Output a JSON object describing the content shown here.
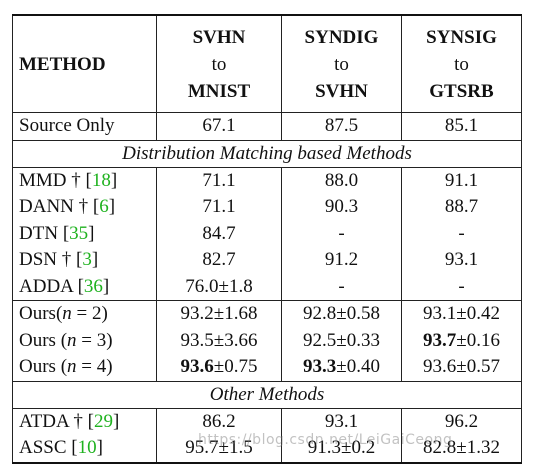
{
  "header": {
    "method": "METHOD",
    "col1": {
      "src": "SVHN",
      "to": "to",
      "dst": "MNIST"
    },
    "col2": {
      "src": "SYNDIG",
      "to": "to",
      "dst": "SVHN"
    },
    "col3": {
      "src": "SYNSIG",
      "to": "to",
      "dst": "GTSRB"
    }
  },
  "source_only": {
    "name": "Source Only",
    "v1": "67.1",
    "v2": "87.5",
    "v3": "85.1"
  },
  "section_distribution": "Distribution Matching based Methods",
  "section_other": "Other Methods",
  "rows": {
    "mmd": {
      "name": "MMD †",
      "ref": "18",
      "v1": "71.1",
      "v2": "88.0",
      "v3": "91.1"
    },
    "dann": {
      "name": "DANN †",
      "ref": "6",
      "v1": "71.1",
      "v2": "90.3",
      "v3": "88.7"
    },
    "dtn": {
      "name": "DTN",
      "ref": "35",
      "v1": "84.7",
      "v2": "-",
      "v3": "-"
    },
    "dsn": {
      "name": "DSN †",
      "ref": "3",
      "v1": "82.7",
      "v2": "91.2",
      "v3": "93.1"
    },
    "adda": {
      "name": "ADDA",
      "ref": "36",
      "v1": "76.0±1.8",
      "v2": "-",
      "v3": "-"
    }
  },
  "ours": {
    "n2": {
      "prefix": "Ours(",
      "var": "n",
      "eq": " = 2)",
      "v1": "93.2±1.68",
      "v2": "92.8±0.58",
      "v3": "93.1±0.42"
    },
    "n3": {
      "prefix": "Ours (",
      "var": "n",
      "eq": " = 3)",
      "v1": "93.5±3.66",
      "v2": "92.5±0.33",
      "v3_bold": "93.7",
      "v3_rest": "±0.16"
    },
    "n4": {
      "prefix": "Ours (",
      "var": "n",
      "eq": " = 4)",
      "v1_bold": "93.6",
      "v1_rest": "±0.75",
      "v2_bold": "93.3",
      "v2_rest": "±0.40",
      "v3": "93.6±0.57"
    }
  },
  "other": {
    "atda": {
      "name": "ATDA †",
      "ref": "29",
      "v1": "86.2",
      "v2": "93.1",
      "v3": "96.2"
    },
    "assc": {
      "name": "ASSC",
      "ref": "10",
      "v1": "95.7±1.5",
      "v2": "91.3±0.2",
      "v3": "82.8±1.32"
    }
  },
  "watermark": "https://blog.csdn.net/LeiGaiCeong",
  "colors": {
    "ref_link": "#1fb21f",
    "rule": "#111111"
  }
}
